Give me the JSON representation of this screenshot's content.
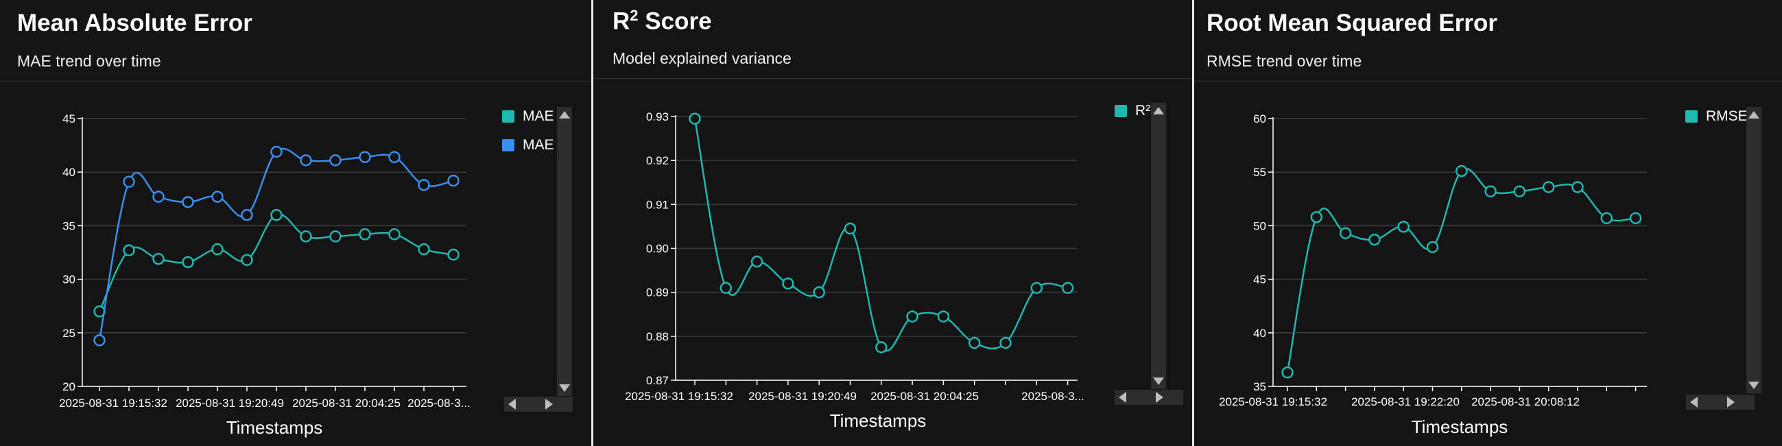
{
  "colors": {
    "teal": "#1fb8b0",
    "blue": "#3a8fee",
    "grid": "#3c3c3c",
    "axis": "#ffffff",
    "background": "#141414"
  },
  "icons": {
    "legend_scroll_up": "triangle-up",
    "legend_scroll_down": "triangle-down",
    "legend_scroll_left": "triangle-left",
    "legend_scroll_right": "triangle-right"
  },
  "panels": [
    {
      "title": "Mean Absolute Error",
      "title_sup": "",
      "subtitle": "MAE trend over time"
    },
    {
      "title": "R",
      "title_sup": "2",
      "subtitle": "Model explained variance",
      "title_after": " Score"
    },
    {
      "title": "Root Mean Squared Error",
      "title_sup": "",
      "subtitle": "RMSE trend over time"
    }
  ],
  "chart_data": [
    {
      "type": "line",
      "title": "",
      "xlabel": "Timestamps",
      "ylabel": "",
      "ylim": [
        20,
        45
      ],
      "yticks": [
        20,
        25,
        30,
        35,
        40,
        45
      ],
      "x_tick_labels": [
        "2025-08-31 19:15:32",
        "2025-08-31 19:20:49",
        "2025-08-31 20:04:25",
        "2025-08-3..."
      ],
      "grid": true,
      "legend": "right",
      "series": [
        {
          "name": "MAE",
          "color": "#1fb8b0",
          "values": [
            27.0,
            32.7,
            31.9,
            31.6,
            32.8,
            31.8,
            36.0,
            34.0,
            34.0,
            34.2,
            34.2,
            32.8,
            32.3
          ]
        },
        {
          "name": "MAE",
          "color": "#3a8fee",
          "values": [
            24.3,
            39.1,
            37.7,
            37.2,
            37.7,
            36.0,
            41.9,
            41.1,
            41.1,
            41.4,
            41.4,
            38.8,
            39.2
          ]
        }
      ]
    },
    {
      "type": "line",
      "title": "",
      "xlabel": "Timestamps",
      "ylabel": "",
      "ylim": [
        0.87,
        0.93
      ],
      "yticks": [
        "0.87",
        "0.88",
        "0.89",
        "0.90",
        "0.91",
        "0.92",
        "0.93"
      ],
      "x_tick_labels": [
        "2025-08-31 19:15:32",
        "2025-08-31 19:20:49",
        "2025-08-31 20:04:25",
        "2025-08-3..."
      ],
      "grid": true,
      "legend": "right",
      "series": [
        {
          "name": "R²",
          "color": "#1fb8b0",
          "values": [
            0.9295,
            0.891,
            0.897,
            0.892,
            0.89,
            0.9045,
            0.8775,
            0.8845,
            0.8845,
            0.8785,
            0.8785,
            0.891,
            0.891
          ]
        }
      ]
    },
    {
      "type": "line",
      "title": "",
      "xlabel": "Timestamps",
      "ylabel": "",
      "ylim": [
        35,
        60
      ],
      "yticks": [
        35,
        40,
        45,
        50,
        55,
        60
      ],
      "x_tick_labels": [
        "2025-08-31 19:15:32",
        "2025-08-31 19:22:20",
        "2025-08-31 20:08:12"
      ],
      "grid": true,
      "legend": "right",
      "series": [
        {
          "name": "RMSE",
          "color": "#1fb8b0",
          "values": [
            36.3,
            50.8,
            49.3,
            48.7,
            49.9,
            48.0,
            55.1,
            53.2,
            53.2,
            53.6,
            53.6,
            50.7,
            50.7
          ]
        }
      ]
    }
  ]
}
